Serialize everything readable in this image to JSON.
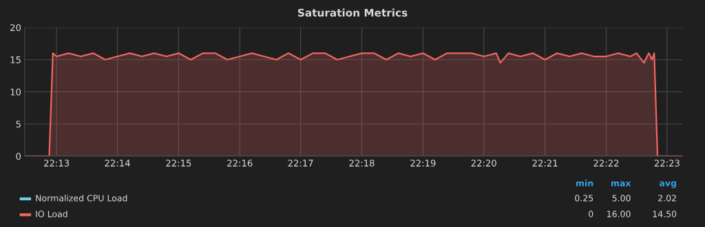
{
  "chart_data": {
    "type": "area",
    "title": "Saturation Metrics",
    "xlim": [
      22.208,
      22.3875
    ],
    "ylim": [
      0,
      20
    ],
    "yticks": [
      0,
      5,
      10,
      15,
      20
    ],
    "xticks": [
      {
        "value": 22.2167,
        "label": "22:13"
      },
      {
        "value": 22.2333,
        "label": "22:14"
      },
      {
        "value": 22.25,
        "label": "22:15"
      },
      {
        "value": 22.2667,
        "label": "22:16"
      },
      {
        "value": 22.2833,
        "label": "22:17"
      },
      {
        "value": 22.3,
        "label": "22:18"
      },
      {
        "value": 22.3167,
        "label": "22:19"
      },
      {
        "value": 22.3333,
        "label": "22:20"
      },
      {
        "value": 22.35,
        "label": "22:21"
      },
      {
        "value": 22.3667,
        "label": "22:22"
      },
      {
        "value": 22.3833,
        "label": "22:23"
      }
    ],
    "grid": true,
    "legend": "bottom",
    "annotations": [
      "min",
      "max",
      "avg",
      "0.25",
      "5.00",
      "2.02",
      "0",
      "16.00",
      "14.50"
    ],
    "series": [
      {
        "name": "Normalized CPU Load",
        "color": "#6ed0e0"
      },
      {
        "name": "IO Load",
        "color": "#f2665e",
        "x": [
          22.208,
          22.2147,
          22.2157,
          22.2167,
          22.22,
          22.2233,
          22.2267,
          22.23,
          22.2333,
          22.2367,
          22.24,
          22.2433,
          22.2467,
          22.25,
          22.2533,
          22.2567,
          22.26,
          22.2633,
          22.2667,
          22.27,
          22.2733,
          22.2767,
          22.28,
          22.2833,
          22.2867,
          22.29,
          22.2933,
          22.2967,
          22.3,
          22.3033,
          22.3067,
          22.31,
          22.3133,
          22.3167,
          22.32,
          22.3233,
          22.3267,
          22.33,
          22.3333,
          22.3367,
          22.3378,
          22.34,
          22.3433,
          22.3467,
          22.35,
          22.3533,
          22.3567,
          22.36,
          22.3633,
          22.3667,
          22.37,
          22.3733,
          22.375,
          22.377,
          22.3783,
          22.3792,
          22.3798,
          22.3807,
          22.3875
        ],
        "values": [
          0,
          0,
          16,
          15.5,
          16,
          15.5,
          16,
          15,
          15.5,
          16,
          15.5,
          16,
          15.5,
          16,
          15,
          16,
          16,
          15,
          15.5,
          16,
          15.5,
          15,
          16,
          15,
          16,
          16,
          15,
          15.5,
          16,
          16,
          15,
          16,
          15.5,
          16,
          15,
          16,
          16,
          16,
          15.5,
          16,
          14.5,
          16,
          15.5,
          16,
          15,
          16,
          15.5,
          16,
          15.5,
          15.5,
          16,
          15.5,
          16,
          14.5,
          16,
          15,
          16,
          0,
          0
        ]
      }
    ]
  }
}
